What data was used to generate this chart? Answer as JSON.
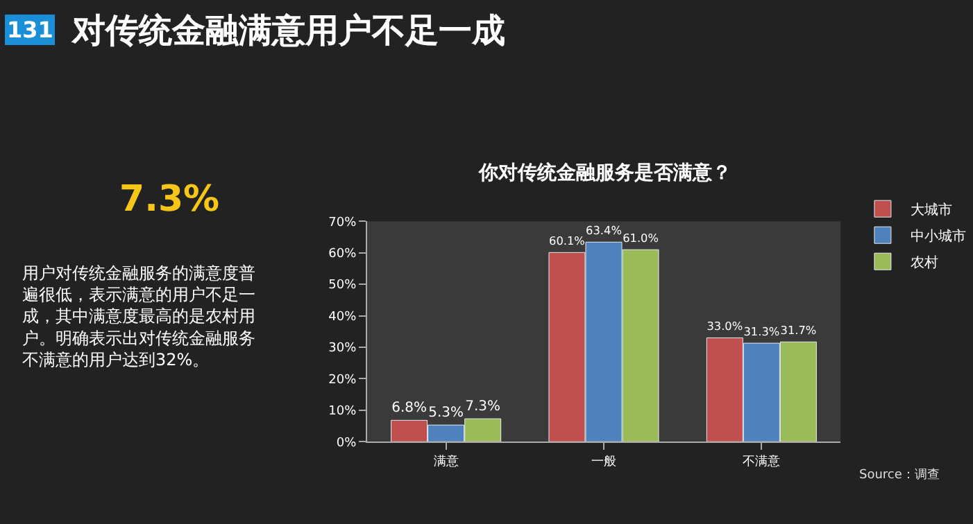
{
  "chart_data": {
    "type": "bar",
    "title": "对传统金融满意用户不足一成",
    "subtitle": "你对传统金融服务是否满意？",
    "categories": [
      "满意",
      "一般",
      "不满意"
    ],
    "series": [
      {
        "name": "大城市",
        "color": "#c0504d",
        "values": [
          6.8,
          60.1,
          33.0
        ],
        "value_labels": [
          "6.8%",
          "60.1%",
          "33.0%"
        ]
      },
      {
        "name": "中小城市",
        "color": "#4f81bd",
        "values": [
          5.3,
          63.4,
          31.3
        ],
        "value_labels": [
          "5.3%",
          "63.4%",
          "31.3%"
        ]
      },
      {
        "name": "农村",
        "color": "#9bbb59",
        "values": [
          7.3,
          61.0,
          31.7
        ],
        "value_labels": [
          "7.3%",
          "61.0%",
          "31.7%"
        ]
      }
    ],
    "ylim": [
      0,
      70
    ],
    "yticks": [
      {
        "value": 0,
        "label": "0%"
      },
      {
        "value": 10,
        "label": "10%"
      },
      {
        "value": 20,
        "label": "20%"
      },
      {
        "value": 30,
        "label": "30%"
      },
      {
        "value": 40,
        "label": "40%"
      },
      {
        "value": 50,
        "label": "50%"
      },
      {
        "value": 60,
        "label": "60%"
      },
      {
        "value": 70,
        "label": "70%"
      }
    ],
    "legend": "right",
    "grid": false,
    "annotations": [
      "131",
      "7.3%",
      "用户对传统金融服务的满意度普遍很低，表示满意的用户不足一成，其中满意度最高的是农村用户。明确表示出对传统金融服务不满意的用户达到32%。",
      "Source：调查"
    ]
  }
}
